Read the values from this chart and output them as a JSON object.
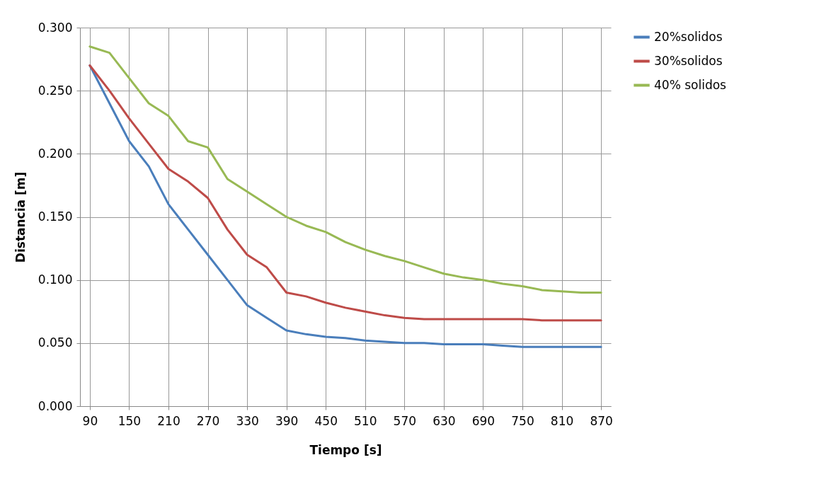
{
  "chart_data": {
    "type": "line",
    "xlabel": "Tiempo [s]",
    "ylabel": "Distancia [m]",
    "x": [
      90,
      120,
      150,
      180,
      210,
      240,
      270,
      300,
      330,
      360,
      390,
      420,
      450,
      480,
      510,
      540,
      570,
      600,
      630,
      660,
      690,
      720,
      750,
      780,
      810,
      840,
      870
    ],
    "series": [
      {
        "name": "20%solidos",
        "color": "#4a7ebb",
        "values": [
          0.27,
          0.24,
          0.21,
          0.19,
          0.16,
          0.14,
          0.12,
          0.1,
          0.08,
          0.07,
          0.06,
          0.057,
          0.055,
          0.054,
          0.052,
          0.051,
          0.05,
          0.05,
          0.049,
          0.049,
          0.049,
          0.048,
          0.047,
          0.047,
          0.047,
          0.047,
          0.047
        ]
      },
      {
        "name": "30%solidos",
        "color": "#be4b48",
        "values": [
          0.27,
          0.25,
          0.228,
          0.208,
          0.188,
          0.178,
          0.165,
          0.14,
          0.12,
          0.11,
          0.09,
          0.087,
          0.082,
          0.078,
          0.075,
          0.072,
          0.07,
          0.069,
          0.069,
          0.069,
          0.069,
          0.069,
          0.069,
          0.068,
          0.068,
          0.068,
          0.068
        ]
      },
      {
        "name": "40% solidos",
        "color": "#98b954",
        "values": [
          0.285,
          0.28,
          0.26,
          0.24,
          0.23,
          0.21,
          0.205,
          0.18,
          0.17,
          0.16,
          0.15,
          0.143,
          0.138,
          0.13,
          0.124,
          0.119,
          0.115,
          0.11,
          0.105,
          0.102,
          0.1,
          0.097,
          0.095,
          0.092,
          0.091,
          0.09,
          0.09
        ]
      }
    ],
    "xlim": [
      75,
      885
    ],
    "xticks": [
      90,
      150,
      210,
      270,
      330,
      390,
      450,
      510,
      570,
      630,
      690,
      750,
      810,
      870
    ],
    "ylim": [
      0,
      0.3
    ],
    "yticks": [
      {
        "value": 0,
        "label": "0.000"
      },
      {
        "value": 0.05,
        "label": "0.050"
      },
      {
        "value": 0.1,
        "label": "0.100"
      },
      {
        "value": 0.15,
        "label": "0.150"
      },
      {
        "value": 0.2,
        "label": "0.200"
      },
      {
        "value": 0.25,
        "label": "0.250"
      },
      {
        "value": 0.3,
        "label": "0.300"
      }
    ],
    "grid": true,
    "legend": "right",
    "marker": "none",
    "line_style": "solid"
  }
}
